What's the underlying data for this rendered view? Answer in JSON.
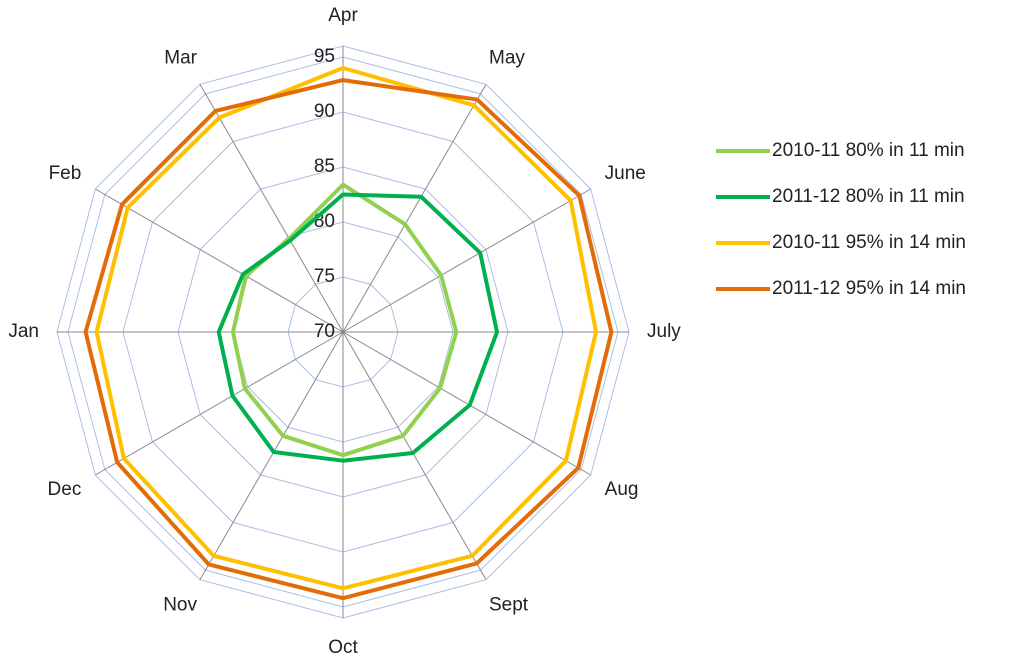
{
  "chart_data": {
    "type": "radar",
    "categories": [
      "Apr",
      "May",
      "June",
      "July",
      "Aug",
      "Sept",
      "Oct",
      "Nov",
      "Dec",
      "Jan",
      "Feb",
      "Mar"
    ],
    "ylim": [
      70,
      96
    ],
    "yticks": [
      70,
      75,
      80,
      85,
      90,
      95
    ],
    "grid": true,
    "legend": "right",
    "series": [
      {
        "name": "2010-11 80% in 11 min",
        "color": "#92d050",
        "values": [
          83.4,
          81.3,
          80.3,
          80.3,
          80.2,
          80.9,
          81.2,
          80.9,
          80.3,
          80.0,
          80.2,
          79.8
        ]
      },
      {
        "name": "2011-12 80% in 11 min",
        "color": "#00b050",
        "values": [
          82.5,
          84.2,
          84.4,
          84.0,
          83.3,
          82.7,
          81.7,
          82.6,
          81.6,
          81.3,
          80.5,
          79.6
        ]
      },
      {
        "name": "2010-11 95% in 14 min",
        "color": "#ffc000",
        "values": [
          94.0,
          93.8,
          93.9,
          93.0,
          93.4,
          93.5,
          93.3,
          93.5,
          93.0,
          92.4,
          92.6,
          92.5
        ]
      },
      {
        "name": "2011-12 95% in 14 min",
        "color": "#e36c09",
        "values": [
          92.9,
          94.4,
          94.8,
          94.4,
          94.7,
          94.3,
          94.2,
          94.4,
          93.7,
          93.4,
          93.2,
          93.2
        ]
      }
    ]
  }
}
